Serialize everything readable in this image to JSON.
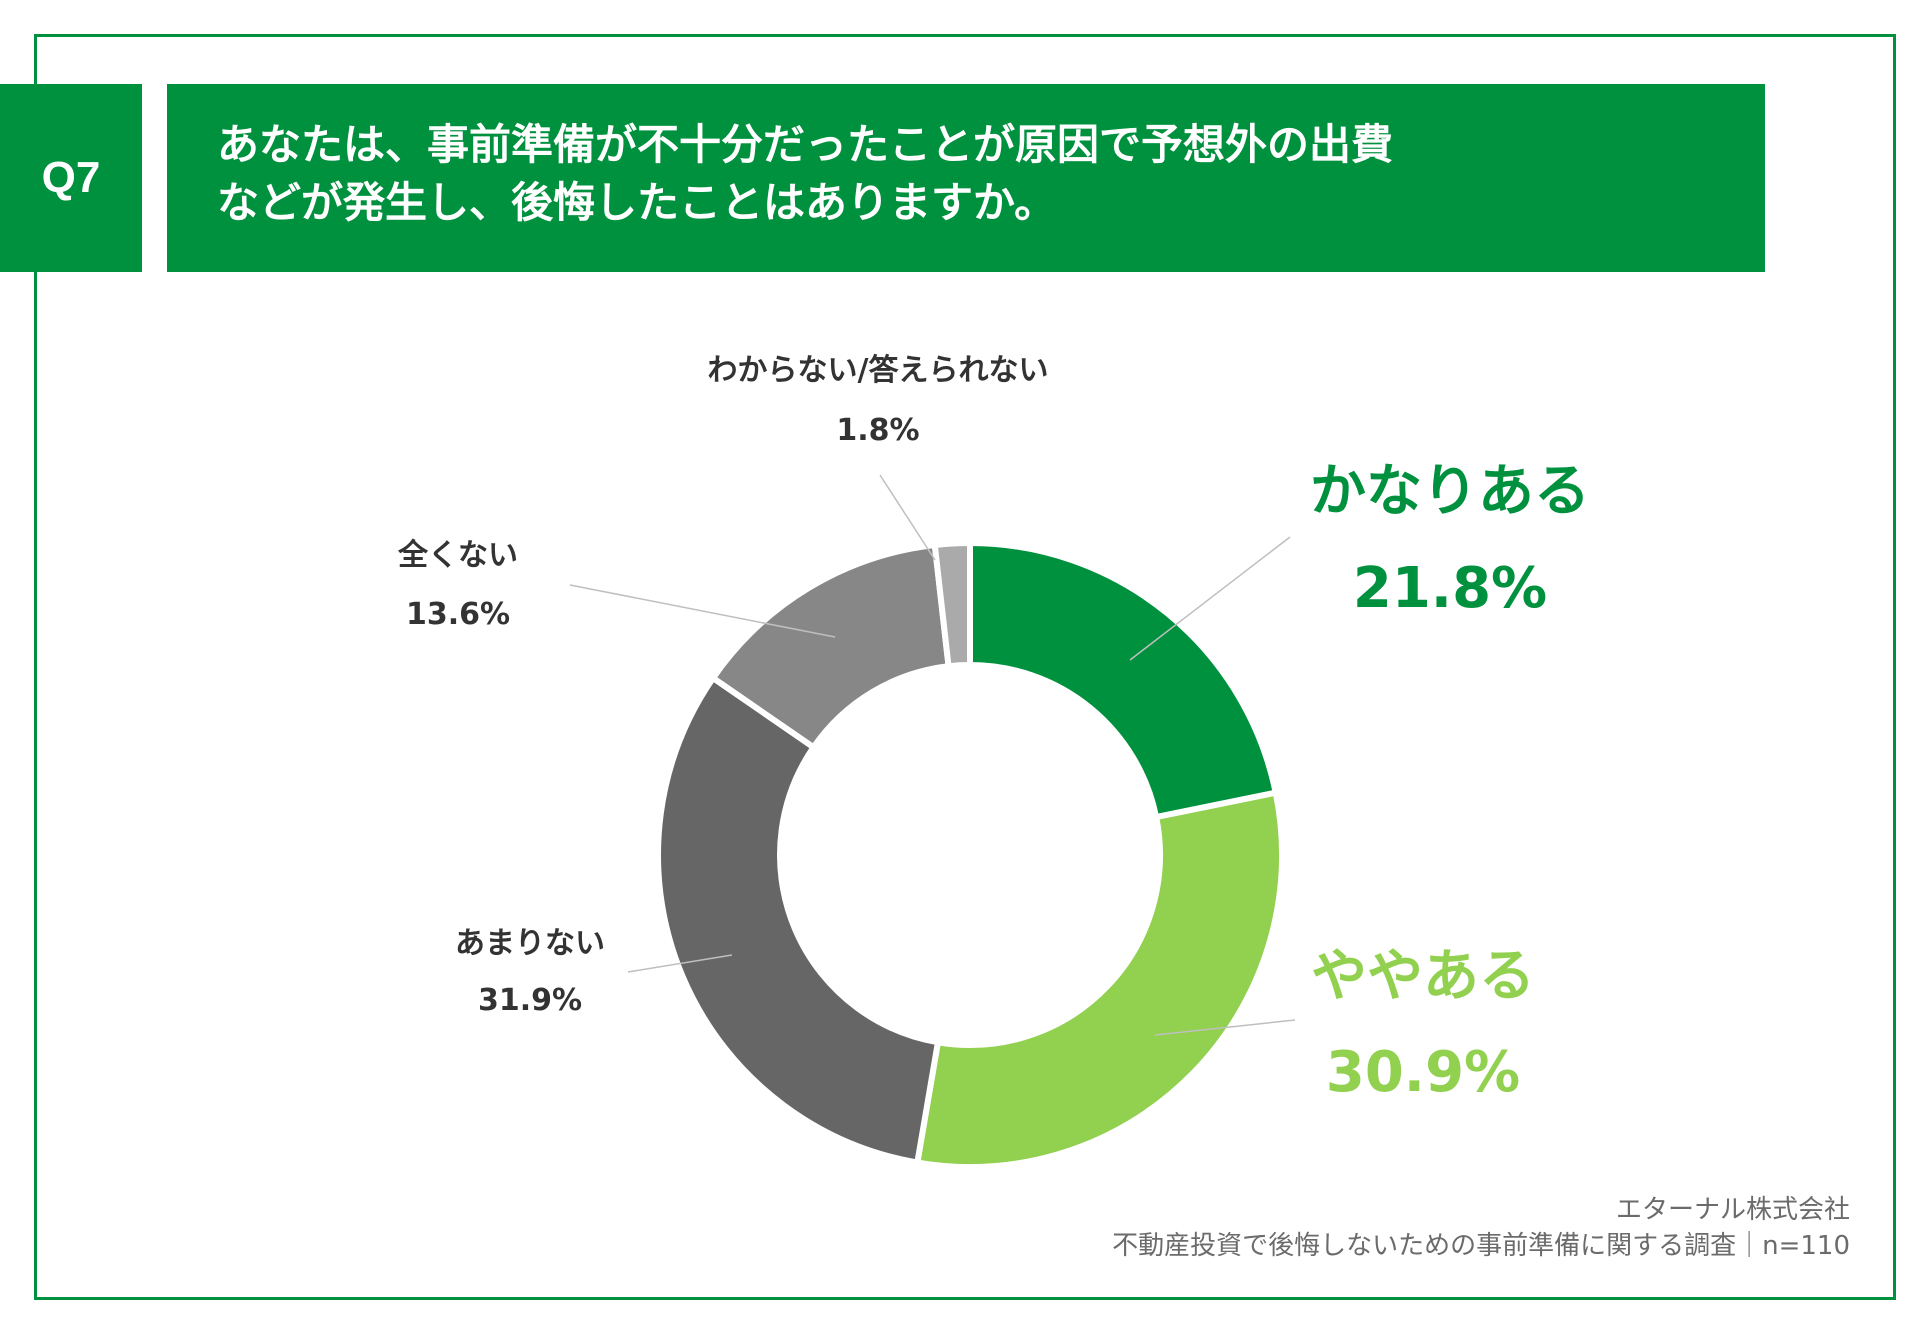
{
  "question": {
    "badge": "Q7",
    "title_line1": "あなたは、事前準備が不十分だったことが原因で予想外の出費",
    "title_line2": "などが発生し、後悔したことはありますか。"
  },
  "chart_data": {
    "type": "pie",
    "donut": true,
    "slices": [
      {
        "label": "かなりある",
        "value": 21.8,
        "value_label": "21.8%",
        "color": "#00913e",
        "label_color": "#00913e",
        "emphasis": true
      },
      {
        "label": "ややある",
        "value": 30.9,
        "value_label": "30.9%",
        "color": "#92d050",
        "label_color": "#92d050",
        "emphasis": true
      },
      {
        "label": "あまりない",
        "value": 31.9,
        "value_label": "31.9%",
        "color": "#666666",
        "label_color": "#333333",
        "emphasis": false
      },
      {
        "label": "全くない",
        "value": 13.6,
        "value_label": "13.6%",
        "color": "#878787",
        "label_color": "#333333",
        "emphasis": false
      },
      {
        "label": "わからない/答えられない",
        "value": 1.8,
        "value_label": "1.8%",
        "color": "#aaaaaa",
        "label_color": "#333333",
        "emphasis": false
      }
    ],
    "start": "12 o'clock",
    "direction": "clockwise"
  },
  "source": {
    "company": "エターナル株式会社",
    "survey": "不動産投資で後悔しないための事前準備に関する調査｜n=110"
  }
}
